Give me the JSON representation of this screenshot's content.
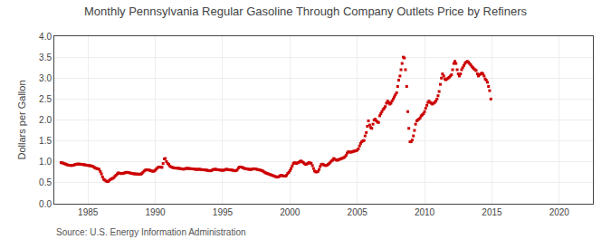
{
  "chart_data": {
    "type": "scatter",
    "title": "Monthly Pennsylvania Regular Gasoline Through Company Outlets Price by Refiners",
    "ylabel": "Dollars per Gallon",
    "annotations": [
      "Source: U.S. Energy Information Administration"
    ],
    "color": "#cc0000",
    "marker": "square",
    "grid": true,
    "xlim": [
      1982.5,
      2022.5
    ],
    "ylim": [
      0.0,
      4.0
    ],
    "xticks": [
      1985,
      1990,
      1995,
      2000,
      2005,
      2010,
      2015,
      2020
    ],
    "yticks": [
      {
        "value": 0.0,
        "label": "0.0"
      },
      0.5,
      {
        "value": 1.0,
        "label": "1.0"
      },
      1.5,
      {
        "value": 2.0,
        "label": "2.0"
      },
      2.5,
      {
        "value": 3.0,
        "label": "3.0"
      },
      3.5,
      {
        "value": 4.0,
        "label": "4.0"
      }
    ],
    "x": [
      1983.0,
      1983.08,
      1983.17,
      1983.25,
      1983.33,
      1983.42,
      1983.5,
      1983.58,
      1983.67,
      1983.75,
      1983.83,
      1983.92,
      1984.0,
      1984.08,
      1984.17,
      1984.25,
      1984.33,
      1984.42,
      1984.5,
      1984.58,
      1984.67,
      1984.75,
      1984.83,
      1984.92,
      1985.0,
      1985.08,
      1985.17,
      1985.25,
      1985.33,
      1985.42,
      1985.5,
      1985.58,
      1985.67,
      1985.75,
      1985.83,
      1985.92,
      1986.0,
      1986.08,
      1986.17,
      1986.25,
      1986.33,
      1986.42,
      1986.5,
      1986.58,
      1986.67,
      1986.75,
      1986.83,
      1986.92,
      1987.0,
      1987.08,
      1987.17,
      1987.25,
      1987.33,
      1987.42,
      1987.5,
      1987.58,
      1987.67,
      1987.75,
      1987.83,
      1987.92,
      1988.0,
      1988.08,
      1988.17,
      1988.25,
      1988.33,
      1988.42,
      1988.5,
      1988.58,
      1988.67,
      1988.75,
      1988.83,
      1988.92,
      1989.0,
      1989.08,
      1989.17,
      1989.25,
      1989.33,
      1989.42,
      1989.5,
      1989.58,
      1989.67,
      1989.75,
      1989.83,
      1989.92,
      1990.0,
      1990.08,
      1990.17,
      1990.25,
      1990.33,
      1990.42,
      1990.5,
      1990.58,
      1990.67,
      1990.75,
      1990.83,
      1990.92,
      1991.0,
      1991.08,
      1991.17,
      1991.25,
      1991.33,
      1991.42,
      1991.5,
      1991.58,
      1991.67,
      1991.75,
      1991.83,
      1991.92,
      1992.0,
      1992.08,
      1992.17,
      1992.25,
      1992.33,
      1992.42,
      1992.5,
      1992.58,
      1992.67,
      1992.75,
      1992.83,
      1992.92,
      1993.0,
      1993.08,
      1993.17,
      1993.25,
      1993.33,
      1993.42,
      1993.5,
      1993.58,
      1993.67,
      1993.75,
      1993.83,
      1993.92,
      1994.0,
      1994.08,
      1994.17,
      1994.25,
      1994.33,
      1994.42,
      1994.5,
      1994.58,
      1994.67,
      1994.75,
      1994.83,
      1994.92,
      1995.0,
      1995.08,
      1995.17,
      1995.25,
      1995.33,
      1995.42,
      1995.5,
      1995.58,
      1995.67,
      1995.75,
      1995.83,
      1995.92,
      1996.0,
      1996.08,
      1996.17,
      1996.25,
      1996.33,
      1996.42,
      1996.5,
      1996.58,
      1996.67,
      1996.75,
      1996.83,
      1996.92,
      1997.0,
      1997.08,
      1997.17,
      1997.25,
      1997.33,
      1997.42,
      1997.5,
      1997.58,
      1997.67,
      1997.75,
      1997.83,
      1997.92,
      1998.0,
      1998.08,
      1998.17,
      1998.25,
      1998.33,
      1998.42,
      1998.5,
      1998.58,
      1998.67,
      1998.75,
      1998.83,
      1998.92,
      1999.0,
      1999.08,
      1999.17,
      1999.25,
      1999.33,
      1999.42,
      1999.5,
      1999.58,
      1999.67,
      1999.75,
      1999.83,
      1999.92,
      2000.0,
      2000.08,
      2000.17,
      2000.25,
      2000.33,
      2000.42,
      2000.5,
      2000.58,
      2000.67,
      2000.75,
      2000.83,
      2000.92,
      2001.0,
      2001.08,
      2001.17,
      2001.25,
      2001.33,
      2001.42,
      2001.5,
      2001.58,
      2001.67,
      2001.75,
      2001.83,
      2001.92,
      2002.0,
      2002.08,
      2002.17,
      2002.25,
      2002.33,
      2002.42,
      2002.5,
      2002.58,
      2002.67,
      2002.75,
      2002.83,
      2002.92,
      2003.0,
      2003.08,
      2003.17,
      2003.25,
      2003.33,
      2003.42,
      2003.5,
      2003.58,
      2003.67,
      2003.75,
      2003.83,
      2003.92,
      2004.0,
      2004.08,
      2004.17,
      2004.25,
      2004.33,
      2004.42,
      2004.5,
      2004.58,
      2004.67,
      2004.75,
      2004.83,
      2004.92,
      2005.0,
      2005.08,
      2005.17,
      2005.25,
      2005.33,
      2005.42,
      2005.5,
      2005.58,
      2005.67,
      2005.75,
      2005.83,
      2005.92,
      2006.0,
      2006.08,
      2006.17,
      2006.25,
      2006.33,
      2006.42,
      2006.5,
      2006.58,
      2006.67,
      2006.75,
      2006.83,
      2006.92,
      2007.0,
      2007.08,
      2007.17,
      2007.25,
      2007.33,
      2007.42,
      2007.5,
      2007.58,
      2007.67,
      2007.75,
      2007.83,
      2007.92,
      2008.0,
      2008.08,
      2008.17,
      2008.25,
      2008.33,
      2008.42,
      2008.5,
      2008.58,
      2008.67,
      2008.75,
      2008.83,
      2008.92,
      2009.0,
      2009.08,
      2009.17,
      2009.25,
      2009.33,
      2009.42,
      2009.5,
      2009.58,
      2009.67,
      2009.75,
      2009.83,
      2009.92,
      2010.0,
      2010.08,
      2010.17,
      2010.25,
      2010.33,
      2010.42,
      2010.5,
      2010.58,
      2010.67,
      2010.75,
      2010.83,
      2010.92,
      2011.0,
      2011.08,
      2011.17,
      2011.25,
      2011.33,
      2011.42,
      2011.5,
      2011.58,
      2011.67,
      2011.75,
      2011.83,
      2011.92,
      2012.0,
      2012.08,
      2012.17,
      2012.25,
      2012.33,
      2012.42,
      2012.5,
      2012.58,
      2012.67,
      2012.75,
      2012.83,
      2012.92,
      2013.0,
      2013.08,
      2013.17,
      2013.25,
      2013.33,
      2013.42,
      2013.5,
      2013.58,
      2013.67,
      2013.75,
      2013.83,
      2013.92,
      2014.0,
      2014.08,
      2014.17,
      2014.25,
      2014.33,
      2014.42,
      2014.5,
      2014.58,
      2014.67,
      2014.75,
      2014.83,
      2014.92
    ],
    "values": [
      0.981,
      0.977,
      0.966,
      0.955,
      0.949,
      0.936,
      0.924,
      0.919,
      0.919,
      0.912,
      0.916,
      0.92,
      0.93,
      0.938,
      0.946,
      0.947,
      0.946,
      0.945,
      0.94,
      0.936,
      0.935,
      0.93,
      0.924,
      0.92,
      0.914,
      0.911,
      0.908,
      0.902,
      0.896,
      0.88,
      0.862,
      0.847,
      0.84,
      0.831,
      0.822,
      0.768,
      0.712,
      0.641,
      0.582,
      0.566,
      0.545,
      0.527,
      0.53,
      0.557,
      0.582,
      0.59,
      0.608,
      0.62,
      0.655,
      0.68,
      0.71,
      0.735,
      0.73,
      0.722,
      0.72,
      0.725,
      0.73,
      0.74,
      0.75,
      0.748,
      0.745,
      0.738,
      0.73,
      0.725,
      0.718,
      0.715,
      0.712,
      0.71,
      0.708,
      0.706,
      0.706,
      0.706,
      0.72,
      0.75,
      0.78,
      0.8,
      0.81,
      0.81,
      0.805,
      0.8,
      0.79,
      0.78,
      0.775,
      0.78,
      0.8,
      0.83,
      0.86,
      0.875,
      0.878,
      0.872,
      0.868,
      0.96,
      1.07,
      1.08,
      1.005,
      0.96,
      0.94,
      0.9,
      0.88,
      0.87,
      0.86,
      0.855,
      0.852,
      0.85,
      0.848,
      0.845,
      0.84,
      0.835,
      0.83,
      0.825,
      0.83,
      0.84,
      0.845,
      0.843,
      0.84,
      0.838,
      0.835,
      0.832,
      0.83,
      0.826,
      0.822,
      0.818,
      0.82,
      0.825,
      0.82,
      0.815,
      0.812,
      0.81,
      0.808,
      0.805,
      0.8,
      0.795,
      0.79,
      0.786,
      0.793,
      0.808,
      0.82,
      0.822,
      0.82,
      0.816,
      0.812,
      0.808,
      0.804,
      0.8,
      0.798,
      0.8,
      0.81,
      0.822,
      0.82,
      0.815,
      0.81,
      0.808,
      0.806,
      0.8,
      0.792,
      0.786,
      0.79,
      0.808,
      0.85,
      0.875,
      0.878,
      0.872,
      0.86,
      0.848,
      0.84,
      0.835,
      0.83,
      0.824,
      0.82,
      0.818,
      0.822,
      0.83,
      0.835,
      0.832,
      0.825,
      0.818,
      0.812,
      0.808,
      0.8,
      0.79,
      0.778,
      0.76,
      0.74,
      0.73,
      0.72,
      0.71,
      0.7,
      0.69,
      0.68,
      0.672,
      0.66,
      0.648,
      0.64,
      0.635,
      0.645,
      0.665,
      0.678,
      0.672,
      0.665,
      0.66,
      0.658,
      0.68,
      0.72,
      0.75,
      0.79,
      0.84,
      0.9,
      0.96,
      0.98,
      0.97,
      0.96,
      0.98,
      0.99,
      1.01,
      1.02,
      1.0,
      0.98,
      0.955,
      0.938,
      0.945,
      0.968,
      0.98,
      0.972,
      0.965,
      0.91,
      0.84,
      0.78,
      0.76,
      0.76,
      0.77,
      0.82,
      0.89,
      0.94,
      0.945,
      0.93,
      0.918,
      0.91,
      0.92,
      0.94,
      0.96,
      0.99,
      1.02,
      1.04,
      1.08,
      1.065,
      1.045,
      1.038,
      1.045,
      1.06,
      1.068,
      1.08,
      1.09,
      1.1,
      1.12,
      1.155,
      1.21,
      1.24,
      1.235,
      1.23,
      1.235,
      1.245,
      1.255,
      1.26,
      1.265,
      1.28,
      1.31,
      1.38,
      1.44,
      1.48,
      1.5,
      1.51,
      1.62,
      1.7,
      1.85,
      1.98,
      1.88,
      1.82,
      1.8,
      1.9,
      2.0,
      2.02,
      1.98,
      1.95,
      1.94,
      2.1,
      2.15,
      2.2,
      2.25,
      2.28,
      2.32,
      2.4,
      2.45,
      2.42,
      2.38,
      2.4,
      2.45,
      2.5,
      2.55,
      2.6,
      2.65,
      2.8,
      2.95,
      3.05,
      3.2,
      3.35,
      3.5,
      3.48,
      3.2,
      2.8,
      2.2,
      1.8,
      1.48,
      1.48,
      1.52,
      1.62,
      1.75,
      1.9,
      1.98,
      2.0,
      2.02,
      2.05,
      2.1,
      2.12,
      2.15,
      2.2,
      2.28,
      2.35,
      2.42,
      2.45,
      2.42,
      2.4,
      2.38,
      2.4,
      2.42,
      2.45,
      2.5,
      2.58,
      2.68,
      2.85,
      3.0,
      3.1,
      3.05,
      2.98,
      2.96,
      2.98,
      3.0,
      3.02,
      3.05,
      3.08,
      3.2,
      3.35,
      3.4,
      3.35,
      3.2,
      3.1,
      3.05,
      3.1,
      3.2,
      3.25,
      3.3,
      3.35,
      3.38,
      3.4,
      3.38,
      3.35,
      3.32,
      3.28,
      3.25,
      3.22,
      3.2,
      3.18,
      3.1,
      3.05,
      3.08,
      3.1,
      3.12,
      3.1,
      3.05,
      2.98,
      2.95,
      2.9,
      2.8,
      2.7,
      2.5
    ]
  }
}
